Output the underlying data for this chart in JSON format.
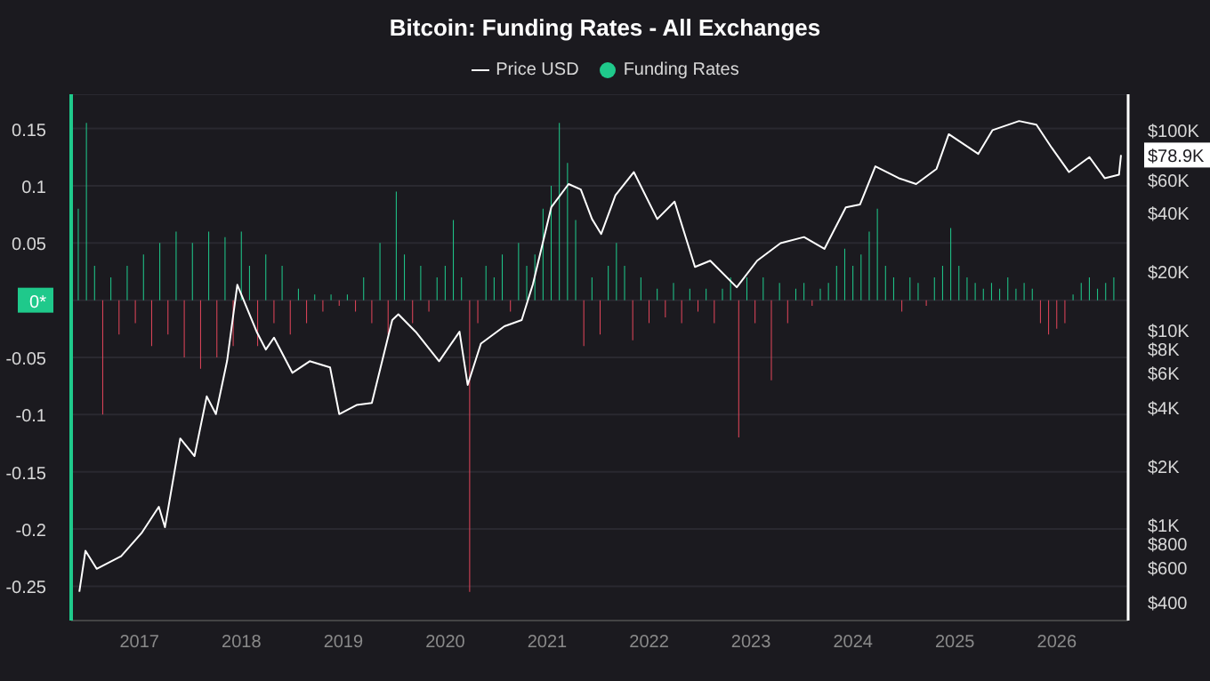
{
  "chart_data": {
    "type": "bar",
    "title": "Bitcoin: Funding Rates - All Exchanges",
    "legend": "top",
    "grid": "y",
    "log": "y2",
    "xlim": [
      2016.33,
      2026.7
    ],
    "xticks": [
      2017,
      2018,
      2019,
      2020,
      2021,
      2022,
      2023,
      2024,
      2025,
      2026
    ],
    "ylim": [
      -0.28,
      0.18
    ],
    "yticks": [
      0.15,
      0.1,
      0.05,
      {
        "value": 0,
        "label": "0*"
      },
      -0.05,
      -0.1,
      -0.15,
      -0.2,
      -0.25
    ],
    "y2lim": [
      320,
      162000
    ],
    "y2ticks": [
      {
        "value": 100000,
        "label": "$100K"
      },
      {
        "value": 78900,
        "label": "$78.9K"
      },
      {
        "value": 60000,
        "label": "$60K"
      },
      {
        "value": 40000,
        "label": "$40K"
      },
      {
        "value": 20000,
        "label": "$20K"
      },
      {
        "value": 10000,
        "label": "$10K"
      },
      {
        "value": 8000,
        "label": "$8K"
      },
      {
        "value": 6000,
        "label": "$6K"
      },
      {
        "value": 4000,
        "label": "$4K"
      },
      {
        "value": 2000,
        "label": "$2K"
      },
      {
        "value": 1000,
        "label": "$1K"
      },
      {
        "value": 800,
        "label": "$800"
      },
      {
        "value": 600,
        "label": "$600"
      },
      {
        "value": 400,
        "label": "$400"
      }
    ],
    "series": [
      {
        "name": "Price USD",
        "type": "line",
        "axis": "y2",
        "color": "#ffffff",
        "x": [
          2016.41,
          2016.47,
          2016.58,
          2016.82,
          2017.02,
          2017.19,
          2017.25,
          2017.4,
          2017.54,
          2017.66,
          2017.75,
          2017.86,
          2017.96,
          2018.15,
          2018.24,
          2018.32,
          2018.5,
          2018.67,
          2018.87,
          2018.96,
          2019.13,
          2019.28,
          2019.48,
          2019.54,
          2019.71,
          2019.94,
          2020.14,
          2020.22,
          2020.35,
          2020.58,
          2020.75,
          2020.86,
          2021.04,
          2021.21,
          2021.33,
          2021.44,
          2021.53,
          2021.67,
          2021.85,
          2022.08,
          2022.25,
          2022.45,
          2022.6,
          2022.86,
          2023.06,
          2023.29,
          2023.52,
          2023.72,
          2023.93,
          2024.07,
          2024.22,
          2024.45,
          2024.62,
          2024.82,
          2024.94,
          2025.23,
          2025.37,
          2025.63,
          2025.8,
          2025.95,
          2026.12,
          2026.32,
          2026.47,
          2026.61,
          2026.63
        ],
        "values": [
          450,
          730,
          590,
          685,
          900,
          1230,
          965,
          2760,
          2240,
          4540,
          3680,
          6920,
          17000,
          9750,
          7900,
          9100,
          6000,
          6880,
          6400,
          3680,
          4100,
          4200,
          11200,
          12000,
          9750,
          6880,
          9750,
          5200,
          8480,
          10400,
          11200,
          17100,
          42500,
          56000,
          52500,
          37000,
          31000,
          49000,
          64500,
          37000,
          45500,
          21000,
          22600,
          16500,
          22600,
          27800,
          29900,
          26000,
          42500,
          44000,
          69000,
          60000,
          56000,
          67000,
          101000,
          80000,
          106000,
          118000,
          113000,
          86000,
          64500,
          77000,
          60000,
          62500,
          78900
        ]
      },
      {
        "name": "Funding Rates",
        "color": "#1fc98b",
        "x": [
          2016.4,
          2016.48,
          2016.56,
          2016.64,
          2016.72,
          2016.8,
          2016.88,
          2016.96,
          2017.04,
          2017.12,
          2017.2,
          2017.28,
          2017.36,
          2017.44,
          2017.52,
          2017.6,
          2017.68,
          2017.76,
          2017.84,
          2017.92,
          2018,
          2018.08,
          2018.16,
          2018.24,
          2018.32,
          2018.4,
          2018.48,
          2018.56,
          2018.64,
          2018.72,
          2018.8,
          2018.88,
          2018.96,
          2019.04,
          2019.12,
          2019.2,
          2019.28,
          2019.36,
          2019.44,
          2019.52,
          2019.6,
          2019.68,
          2019.76,
          2019.84,
          2019.92,
          2020,
          2020.08,
          2020.16,
          2020.24,
          2020.32,
          2020.4,
          2020.48,
          2020.56,
          2020.64,
          2020.72,
          2020.8,
          2020.88,
          2020.96,
          2021.04,
          2021.12,
          2021.2,
          2021.28,
          2021.36,
          2021.44,
          2021.52,
          2021.6,
          2021.68,
          2021.76,
          2021.84,
          2021.92,
          2022,
          2022.08,
          2022.16,
          2022.24,
          2022.32,
          2022.4,
          2022.48,
          2022.56,
          2022.64,
          2022.72,
          2022.8,
          2022.88,
          2022.96,
          2023.04,
          2023.12,
          2023.2,
          2023.28,
          2023.36,
          2023.44,
          2023.52,
          2023.6,
          2023.68,
          2023.76,
          2023.84,
          2023.92,
          2024,
          2024.08,
          2024.16,
          2024.24,
          2024.32,
          2024.4,
          2024.48,
          2024.56,
          2024.64,
          2024.72,
          2024.8,
          2024.88,
          2024.96,
          2025.04,
          2025.12,
          2025.2,
          2025.28,
          2025.36,
          2025.44,
          2025.52,
          2025.6,
          2025.68,
          2025.76,
          2025.84,
          2025.92,
          2026,
          2026.08,
          2026.16,
          2026.24,
          2026.32,
          2026.4,
          2026.48,
          2026.56
        ],
        "values": [
          0.08,
          0.155,
          0.03,
          -0.1,
          0.02,
          -0.03,
          0.03,
          -0.02,
          0.04,
          -0.04,
          0.05,
          -0.03,
          0.06,
          -0.05,
          0.05,
          -0.06,
          0.06,
          -0.05,
          0.055,
          -0.04,
          0.06,
          0.03,
          -0.04,
          0.04,
          -0.02,
          0.03,
          -0.03,
          0.01,
          -0.02,
          0.005,
          -0.01,
          0.005,
          -0.005,
          0.005,
          -0.01,
          0.02,
          -0.02,
          0.05,
          -0.03,
          0.095,
          0.04,
          -0.02,
          0.03,
          -0.01,
          0.02,
          0.03,
          0.07,
          0.02,
          -0.255,
          -0.02,
          0.03,
          0.02,
          0.04,
          -0.01,
          0.05,
          0.03,
          0.04,
          0.08,
          0.1,
          0.155,
          0.12,
          0.07,
          -0.04,
          0.02,
          -0.03,
          0.03,
          0.05,
          0.03,
          -0.035,
          0.02,
          -0.02,
          0.01,
          -0.015,
          0.015,
          -0.02,
          0.01,
          -0.01,
          0.01,
          -0.02,
          0.01,
          0.02,
          -0.12,
          0.02,
          -0.02,
          0.02,
          -0.07,
          0.015,
          -0.02,
          0.01,
          0.015,
          -0.005,
          0.01,
          0.015,
          0.03,
          0.045,
          0.03,
          0.04,
          0.06,
          0.08,
          0.03,
          0.02,
          -0.01,
          0.02,
          0.015,
          -0.005,
          0.02,
          0.03,
          0.063,
          0.03,
          0.02,
          0.015,
          0.01,
          0.015,
          0.01,
          0.02,
          0.01,
          0.015,
          0.01,
          -0.02,
          -0.03,
          -0.025,
          -0.02,
          0.005,
          0.015,
          0.02,
          0.01,
          0.015,
          0.02
        ],
        "colors": [
          "#1fc98b",
          "#1fc98b",
          "#1fc98b",
          "#e0455a",
          "#1fc98b",
          "#e0455a",
          "#1fc98b",
          "#e0455a",
          "#1fc98b",
          "#e0455a",
          "#1fc98b",
          "#e0455a",
          "#1fc98b",
          "#e0455a",
          "#1fc98b",
          "#e0455a",
          "#1fc98b",
          "#e0455a",
          "#1fc98b",
          "#e0455a",
          "#1fc98b",
          "#1fc98b",
          "#e0455a",
          "#1fc98b",
          "#e0455a",
          "#1fc98b",
          "#e0455a",
          "#1fc98b",
          "#e0455a",
          "#1fc98b",
          "#e0455a",
          "#1fc98b",
          "#e0455a",
          "#1fc98b",
          "#e0455a",
          "#1fc98b",
          "#e0455a",
          "#1fc98b",
          "#e0455a",
          "#1fc98b",
          "#1fc98b",
          "#e0455a",
          "#1fc98b",
          "#e0455a",
          "#1fc98b",
          "#1fc98b",
          "#1fc98b",
          "#1fc98b",
          "#e0455a",
          "#e0455a",
          "#1fc98b",
          "#1fc98b",
          "#1fc98b",
          "#e0455a",
          "#1fc98b",
          "#1fc98b",
          "#1fc98b",
          "#1fc98b",
          "#1fc98b",
          "#1fc98b",
          "#1fc98b",
          "#1fc98b",
          "#e0455a",
          "#1fc98b",
          "#e0455a",
          "#1fc98b",
          "#1fc98b",
          "#1fc98b",
          "#e0455a",
          "#1fc98b",
          "#e0455a",
          "#1fc98b",
          "#e0455a",
          "#1fc98b",
          "#e0455a",
          "#1fc98b",
          "#e0455a",
          "#1fc98b",
          "#e0455a",
          "#1fc98b",
          "#1fc98b",
          "#e0455a",
          "#1fc98b",
          "#e0455a",
          "#1fc98b",
          "#e0455a",
          "#1fc98b",
          "#e0455a",
          "#1fc98b",
          "#1fc98b",
          "#e0455a",
          "#1fc98b",
          "#1fc98b",
          "#1fc98b",
          "#1fc98b",
          "#1fc98b",
          "#1fc98b",
          "#1fc98b",
          "#1fc98b",
          "#1fc98b",
          "#1fc98b",
          "#e0455a",
          "#1fc98b",
          "#1fc98b",
          "#e0455a",
          "#1fc98b",
          "#1fc98b",
          "#1fc98b",
          "#1fc98b",
          "#1fc98b",
          "#1fc98b",
          "#1fc98b",
          "#1fc98b",
          "#1fc98b",
          "#1fc98b",
          "#1fc98b",
          "#1fc98b",
          "#1fc98b",
          "#e0455a",
          "#e0455a",
          "#e0455a",
          "#e0455a",
          "#1fc98b",
          "#1fc98b",
          "#1fc98b",
          "#1fc98b",
          "#1fc98b",
          "#1fc98b"
        ]
      }
    ]
  }
}
